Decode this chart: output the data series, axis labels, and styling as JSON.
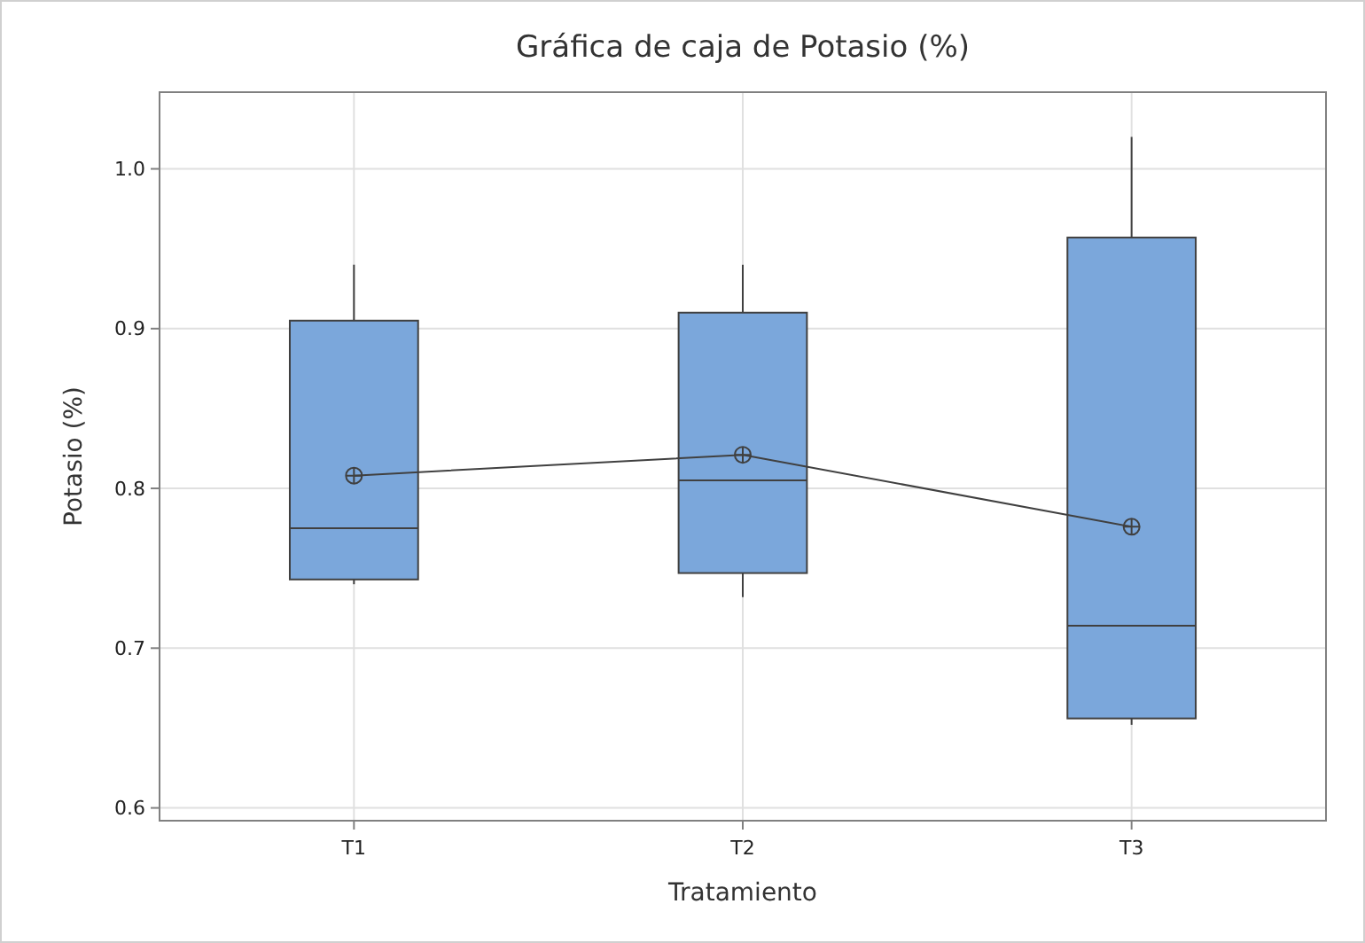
{
  "chart_data": {
    "type": "box",
    "title": "Gráfica de caja de Potasio (%)",
    "xlabel": "Tratamiento",
    "ylabel": "Potasio (%)",
    "categories": [
      "T1",
      "T2",
      "T3"
    ],
    "series": [
      {
        "color": "#7ba7db",
        "boxes": [
          {
            "low": 0.74,
            "q1": 0.743,
            "median": 0.775,
            "q3": 0.905,
            "high": 0.94
          },
          {
            "low": 0.732,
            "q1": 0.747,
            "median": 0.805,
            "q3": 0.91,
            "high": 0.94
          },
          {
            "low": 0.652,
            "q1": 0.656,
            "median": 0.714,
            "q3": 0.957,
            "high": 1.02
          }
        ]
      },
      {
        "type": "line",
        "x": [
          "T1",
          "T2",
          "T3"
        ],
        "values": [
          0.808,
          0.821,
          0.776
        ],
        "color": "#404040",
        "marker": "circle"
      }
    ],
    "ylim": [
      0.592,
      1.048
    ],
    "yticks": [
      0.6,
      0.7,
      0.8,
      0.9,
      {
        "value": 1,
        "label": "1.0"
      }
    ],
    "grid": true
  }
}
